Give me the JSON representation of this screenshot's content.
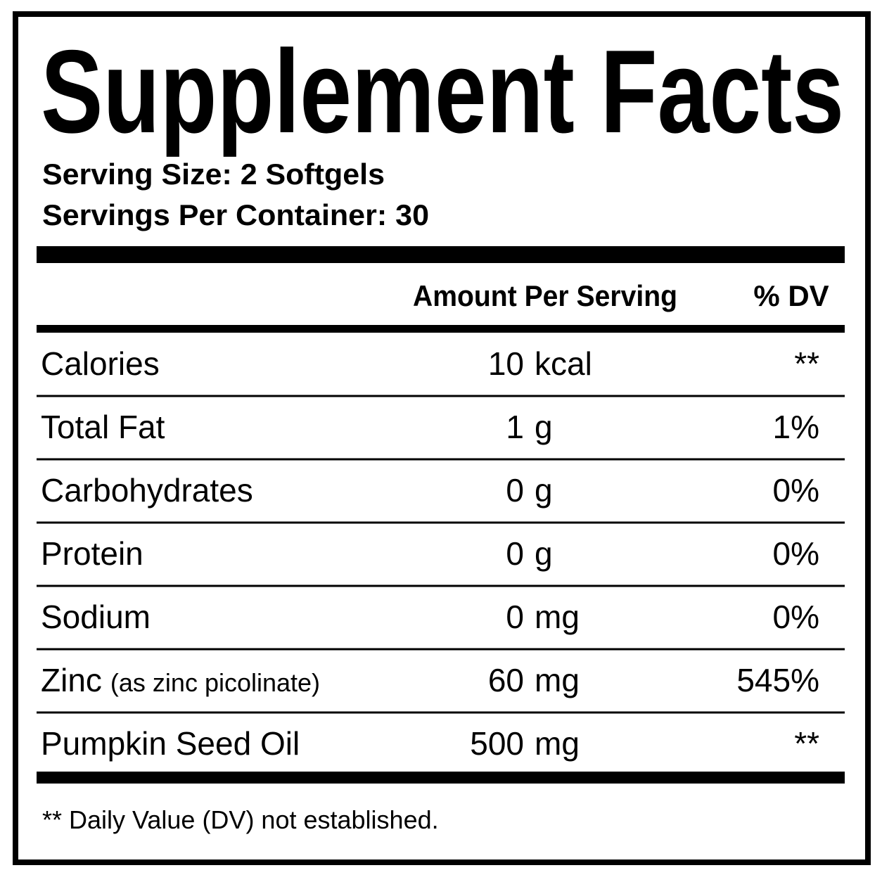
{
  "title": "Supplement Facts",
  "serving_size": "Serving Size: 2 Softgels",
  "servings_per_container": "Servings Per Container: 30",
  "header": {
    "amount": "Amount Per Serving",
    "dv": "% DV"
  },
  "rows": [
    {
      "name": "Calories",
      "amount": "10",
      "unit": "kcal",
      "dv": "**"
    },
    {
      "name": "Total Fat",
      "amount": "1",
      "unit": "g",
      "dv": "1%"
    },
    {
      "name": "Carbohydrates",
      "amount": "0",
      "unit": "g",
      "dv": "0%"
    },
    {
      "name": "Protein",
      "amount": "0",
      "unit": "g",
      "dv": "0%"
    },
    {
      "name": "Sodium",
      "amount": "0",
      "unit": "mg",
      "dv": "0%"
    },
    {
      "name": "Zinc",
      "note": "(as zinc picolinate)",
      "amount": "60",
      "unit": "mg",
      "dv": "545%"
    },
    {
      "name": "Pumpkin Seed Oil",
      "amount": "500",
      "unit": "mg",
      "dv": "**"
    }
  ],
  "footnote": "** Daily Value (DV) not established."
}
